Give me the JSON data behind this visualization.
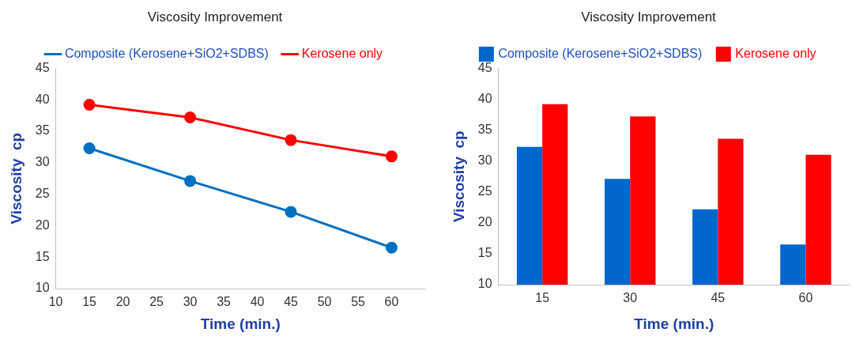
{
  "chart_data": [
    {
      "type": "line",
      "title": "Viscosity Improvement",
      "xlabel": "Time (min.)",
      "ylabel": "Viscosity  cp",
      "x": [
        15,
        30,
        45,
        60
      ],
      "series": [
        {
          "name": "Composite (Kerosene+SiO2+SDBS)",
          "color": "#0070c0",
          "values": [
            32.3,
            27.1,
            22.2,
            16.5
          ]
        },
        {
          "name": "Kerosene only",
          "color": "#ff0000",
          "values": [
            39.2,
            37.2,
            33.6,
            31.0
          ]
        }
      ],
      "xlim": [
        10,
        65
      ],
      "xticks": [
        10,
        15,
        20,
        25,
        30,
        35,
        40,
        45,
        50,
        55,
        60
      ],
      "ylim": [
        10,
        45
      ],
      "yticks": [
        10,
        15,
        20,
        25,
        30,
        35,
        40,
        45
      ],
      "grid": false,
      "legend": "top",
      "marker": "circle"
    },
    {
      "type": "bar",
      "title": "Viscosity Improvement",
      "xlabel": "Time (min.)",
      "ylabel": "Viscosity  cp",
      "categories": [
        "15",
        "30",
        "45",
        "60"
      ],
      "series": [
        {
          "name": "Composite (Kerosene+SiO2+SDBS)",
          "color": "#0066cc",
          "values": [
            32.3,
            27.1,
            22.2,
            16.5
          ]
        },
        {
          "name": "Kerosene only",
          "color": "#ff0000",
          "values": [
            39.2,
            37.2,
            33.6,
            31.0
          ]
        }
      ],
      "ylim": [
        10,
        45
      ],
      "yticks": [
        10,
        15,
        20,
        25,
        30,
        35,
        40,
        45
      ],
      "grid": false,
      "legend": "top"
    }
  ]
}
